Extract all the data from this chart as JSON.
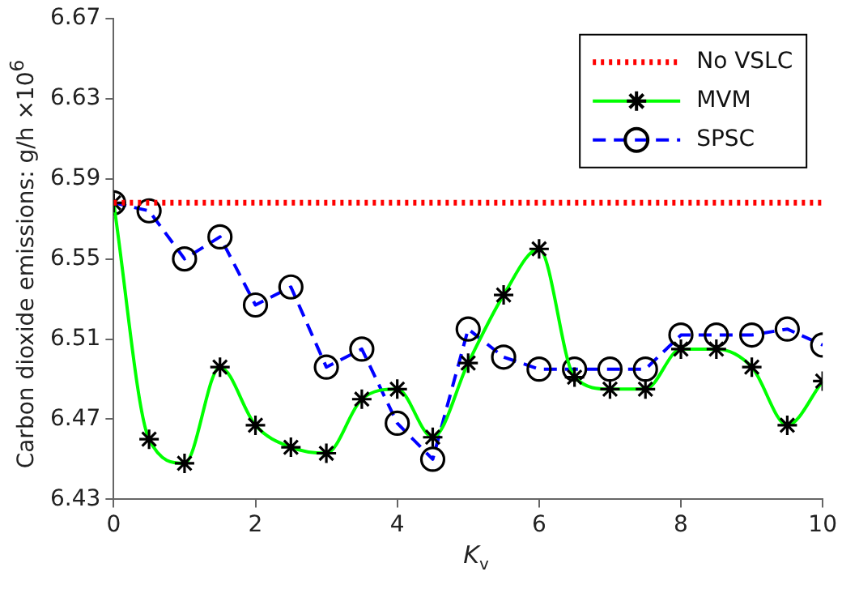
{
  "chart_data": {
    "type": "line",
    "xlabel": "K$_{v}$",
    "ylabel": "Carbon dioxide emissions: g/h ×10$^{6}$",
    "xlim": [
      0,
      10
    ],
    "xticks": [
      0,
      2,
      4,
      6,
      8,
      10
    ],
    "ylim": [
      6.43,
      6.67
    ],
    "yticks": [
      6.43,
      6.47,
      6.51,
      6.55,
      6.59,
      6.63,
      6.67
    ],
    "grid": false,
    "legend": "top right",
    "series": [
      {
        "name": "No VSLC",
        "color": "#ff0000",
        "line_style": "dotted",
        "x": [
          0,
          10
        ],
        "values": [
          6.578,
          6.578
        ]
      },
      {
        "name": "MVM",
        "color": "#00ff00",
        "line_style": "solid",
        "marker": "cross",
        "x": [
          0,
          0.5,
          1,
          1.5,
          2,
          2.5,
          3,
          3.5,
          4,
          4.5,
          5,
          5.5,
          6,
          6.5,
          7,
          7.5,
          8,
          8.5,
          9,
          9.5,
          10
        ],
        "values": [
          6.578,
          6.46,
          6.448,
          6.496,
          6.467,
          6.456,
          6.453,
          6.48,
          6.485,
          6.461,
          6.498,
          6.532,
          6.555,
          6.491,
          6.485,
          6.485,
          6.505,
          6.505,
          6.496,
          6.467,
          6.489
        ]
      },
      {
        "name": "SPSC",
        "color": "#0000ff",
        "line_style": "dashed",
        "marker": "circle",
        "x": [
          0,
          0.5,
          1,
          1.5,
          2,
          2.5,
          3,
          3.5,
          4,
          4.5,
          5,
          5.5,
          6,
          6.5,
          7,
          7.5,
          8,
          8.5,
          9,
          9.5,
          10
        ],
        "values": [
          6.578,
          6.574,
          6.55,
          6.561,
          6.527,
          6.536,
          6.496,
          6.505,
          6.468,
          6.45,
          6.515,
          6.501,
          6.495,
          6.495,
          6.495,
          6.495,
          6.512,
          6.512,
          6.512,
          6.515,
          6.507
        ]
      }
    ]
  }
}
